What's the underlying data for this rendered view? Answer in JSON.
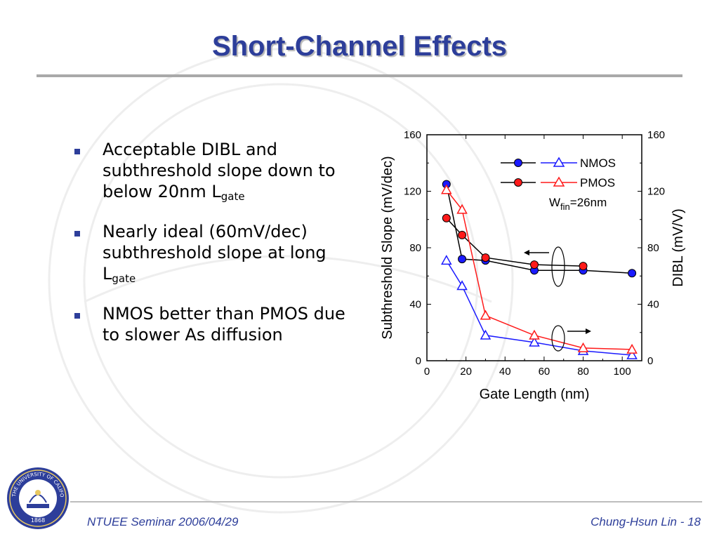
{
  "slide": {
    "title": "Short-Channel Effects",
    "bullets": [
      {
        "text": "Acceptable DIBL and subthreshold slope down to below 20nm L",
        "sub": "gate"
      },
      {
        "text": "Nearly ideal (60mV/dec) subthreshold slope at long L",
        "sub": "gate"
      },
      {
        "text": "NMOS better than PMOS due to slower As diffusion",
        "sub": ""
      }
    ],
    "bullet_color": "#2d3e9a"
  },
  "footer": {
    "left": "NTUEE Seminar 2006/04/29",
    "right": "Chung-Hsun Lin - 18",
    "seal_text": "THE UNIVERSITY OF CALIFORNIA BERKELEY",
    "seal_year": "1868"
  },
  "chart_data": {
    "type": "line",
    "xlabel": "Gate Length (nm)",
    "ylabel_left": "Subthreshold Slope (mV/dec)",
    "ylabel_right": "DIBL (mV/V)",
    "xlim": [
      0,
      110
    ],
    "ylim_left": [
      0,
      160
    ],
    "ylim_right": [
      0,
      160
    ],
    "x_ticks": [
      0,
      20,
      40,
      60,
      80,
      100
    ],
    "y_ticks": [
      0,
      40,
      80,
      120,
      160
    ],
    "legend": {
      "placement": "top-right",
      "entries": [
        "NMOS",
        "PMOS"
      ],
      "annotation_main": "W",
      "annotation_sub": "fin",
      "annotation_rest": "=26nm"
    },
    "series": [
      {
        "name": "NMOS",
        "metric": "subthreshold slope",
        "axis": "left",
        "marker": "filled-circle",
        "marker_color": "#1a1aff",
        "line_color": "#000000",
        "x": [
          10,
          18,
          30,
          55,
          80,
          105
        ],
        "y": [
          125,
          72,
          71,
          64,
          64,
          62
        ]
      },
      {
        "name": "PMOS",
        "metric": "subthreshold slope",
        "axis": "left",
        "marker": "filled-circle",
        "marker_color": "#ff1a1a",
        "line_color": "#000000",
        "x": [
          10,
          18,
          30,
          55,
          80
        ],
        "y": [
          101,
          89,
          73,
          68,
          67
        ]
      },
      {
        "name": "NMOS",
        "metric": "DIBL",
        "axis": "right",
        "marker": "open-triangle",
        "marker_color": "#1a1aff",
        "line_color": "#1a1aff",
        "x": [
          10,
          18,
          30,
          55,
          80,
          105
        ],
        "y": [
          71,
          53,
          18,
          13,
          7,
          4
        ]
      },
      {
        "name": "PMOS",
        "metric": "DIBL",
        "axis": "right",
        "marker": "open-triangle",
        "marker_color": "#ff1a1a",
        "line_color": "#ff1a1a",
        "x": [
          10,
          18,
          30,
          55,
          80,
          105
        ],
        "y": [
          121,
          107,
          32,
          18,
          9,
          8
        ]
      }
    ]
  }
}
